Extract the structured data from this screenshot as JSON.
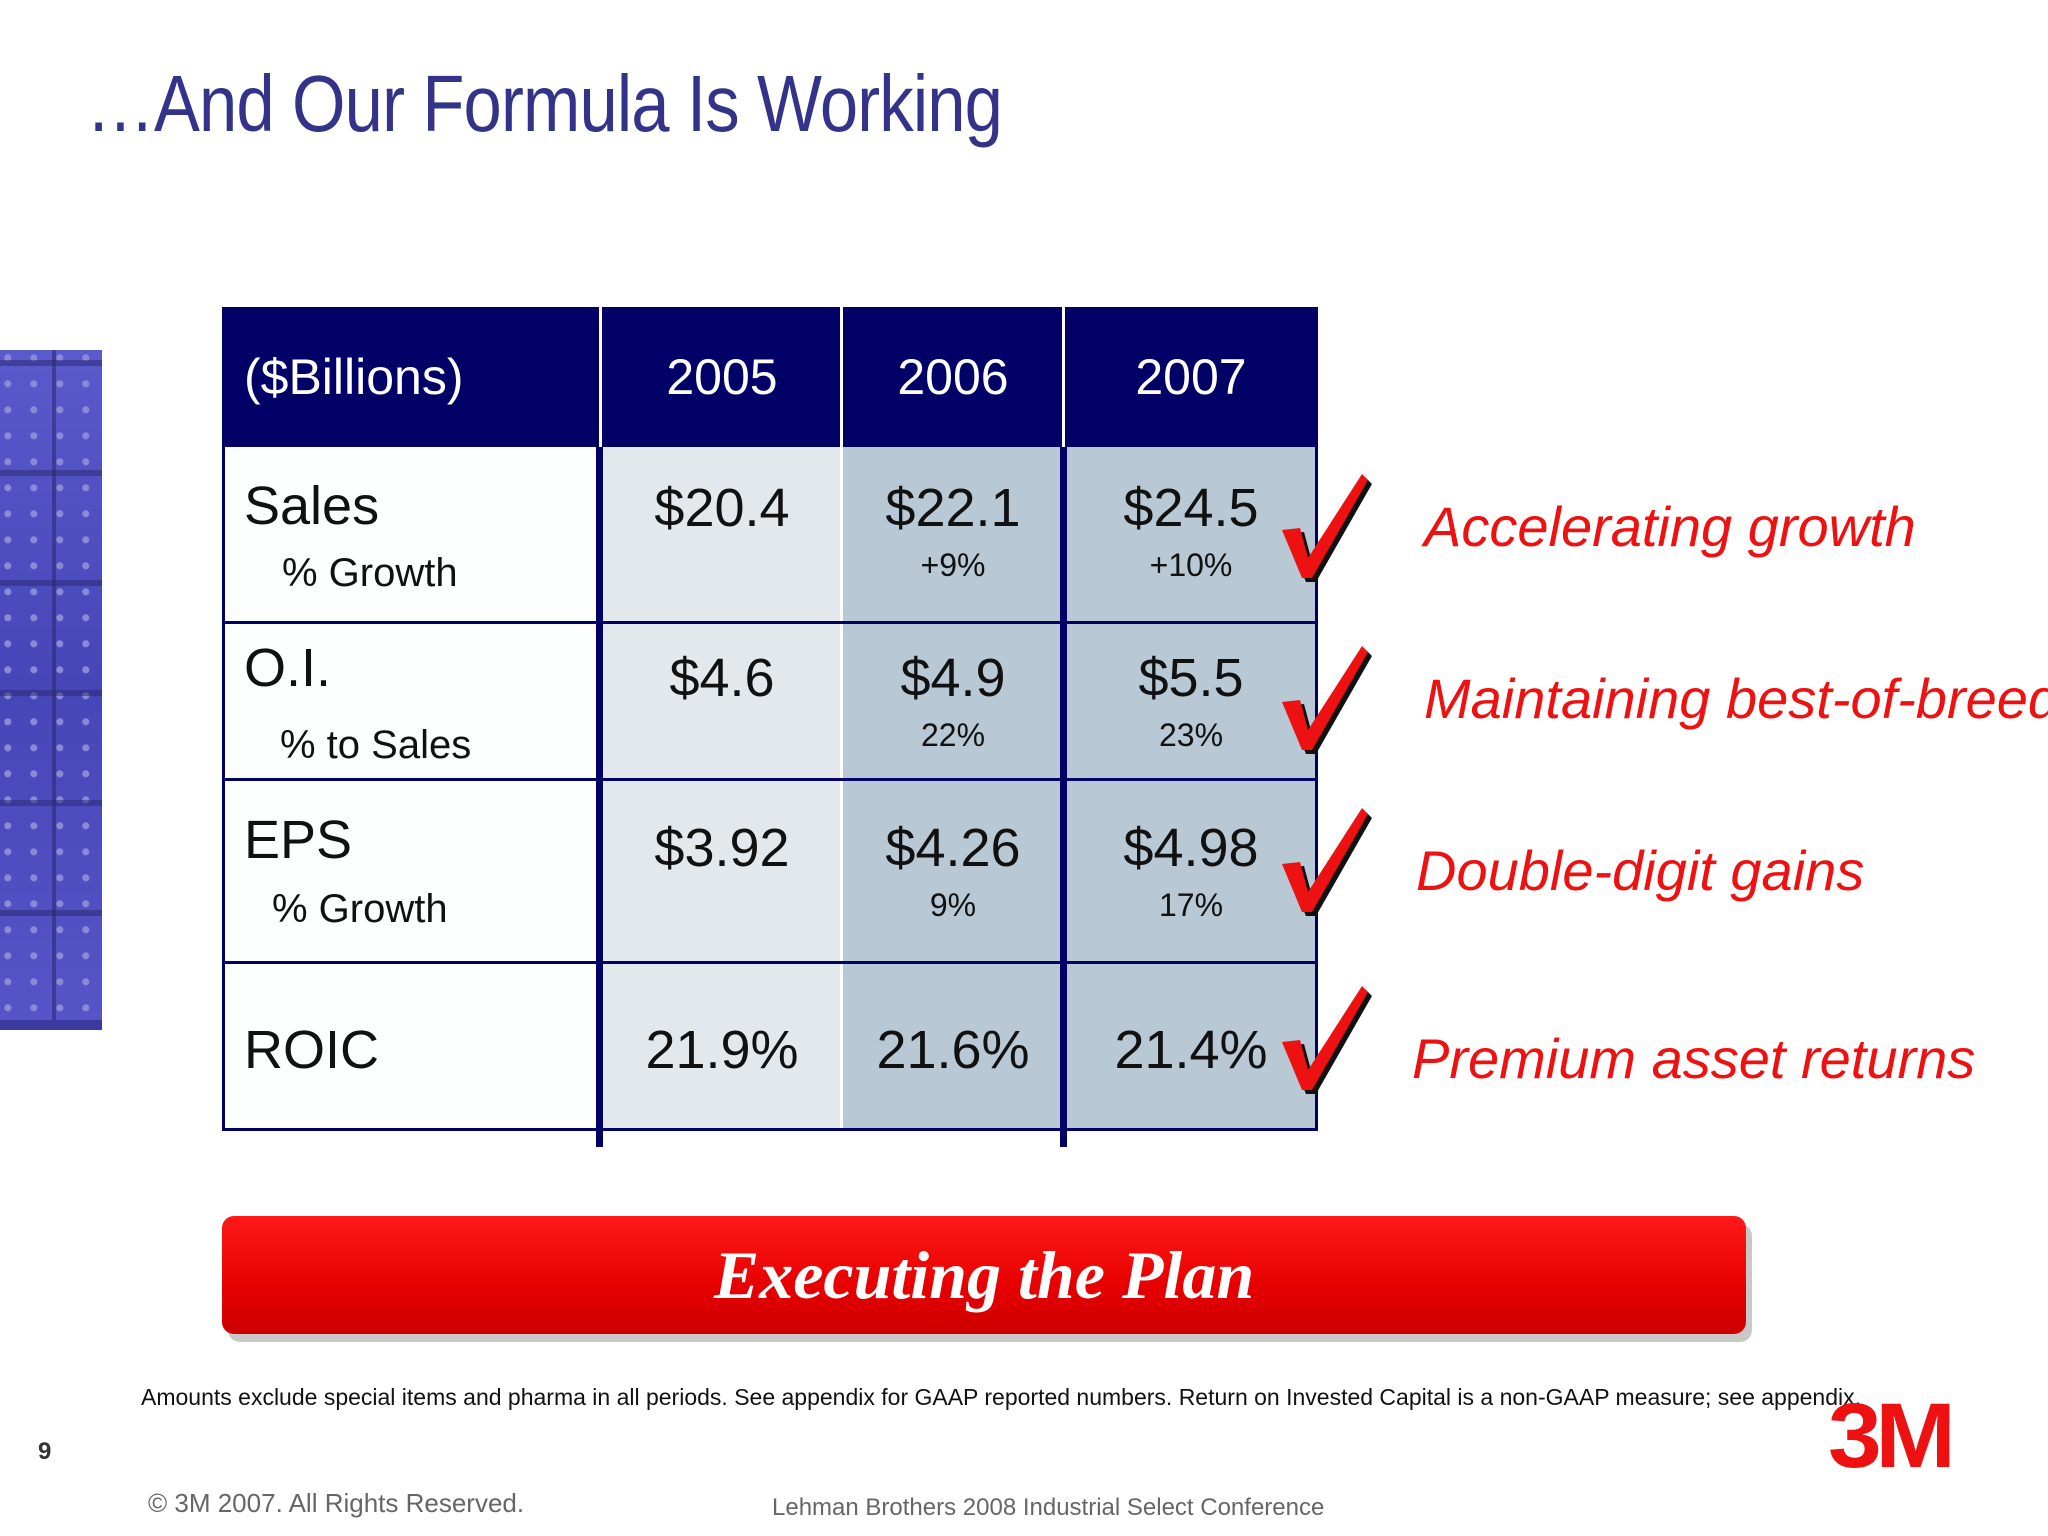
{
  "slide": {
    "title": "…And Our Formula Is Working",
    "page_number": "9"
  },
  "table": {
    "unit_label": "($Billions)",
    "years": [
      "2005",
      "2006",
      "2007"
    ],
    "rows": [
      {
        "label": "Sales",
        "sublabel": "% Growth",
        "values": [
          "$20.4",
          "$22.1",
          "$24.5"
        ],
        "subvalues": [
          "",
          "+9%",
          "+10%"
        ]
      },
      {
        "label": "O.I.",
        "sublabel": "% to Sales",
        "values": [
          "$4.6",
          "$4.9",
          "$5.5"
        ],
        "subvalues": [
          "",
          "22%",
          "23%"
        ]
      },
      {
        "label": "EPS",
        "sublabel": "% Growth",
        "values": [
          "$3.92",
          "$4.26",
          "$4.98"
        ],
        "subvalues": [
          "",
          "9%",
          "17%"
        ]
      },
      {
        "label": "ROIC",
        "sublabel": "",
        "values": [
          "21.9%",
          "21.6%",
          "21.4%"
        ],
        "subvalues": [
          "",
          "",
          ""
        ]
      }
    ]
  },
  "highlights": [
    "Accelerating growth",
    "Maintaining best-of-breed",
    "Double-digit gains",
    "Premium asset returns"
  ],
  "banner": {
    "text": "Executing the Plan"
  },
  "footer": {
    "footnote": "Amounts exclude special items and pharma in all periods.  See appendix for GAAP reported numbers. Return on Invested Capital is a non-GAAP measure; see appendix.",
    "copyright": "© 3M 2007.  All Rights Reserved.",
    "conference": "Lehman Brothers 2008 Industrial Select Conference",
    "logo_text": "3M"
  },
  "colors": {
    "title": "#33338a",
    "table_header": "#000066",
    "col_2005": "#e3e8ec",
    "col_2006_2007": "#b8c8d4",
    "accent_red": "#ee1111"
  },
  "icons": {
    "check": "red-checkmark-icon"
  }
}
